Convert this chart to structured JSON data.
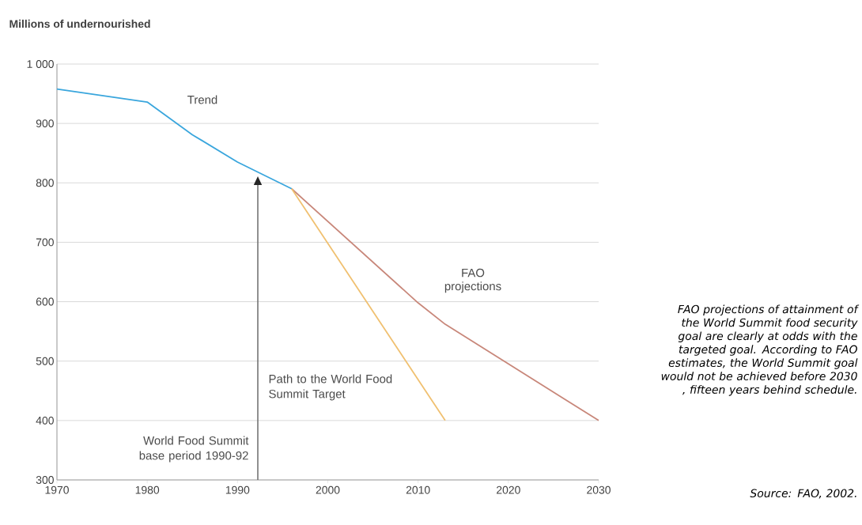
{
  "chart_data": {
    "type": "line",
    "ylabel": "Millions of undernourished",
    "xlim": [
      1970,
      2030
    ],
    "xticks": [
      1970,
      1980,
      1990,
      2000,
      2010,
      2020,
      2030
    ],
    "ylim": [
      300,
      1000
    ],
    "yticks": [
      300,
      400,
      500,
      600,
      700,
      800,
      900,
      {
        "value": 1000,
        "label": "1 000"
      }
    ],
    "grid": "y",
    "marker": "none",
    "line_style": "solid",
    "series": [
      {
        "color": "#3aa6dd",
        "x": [
          1970,
          1980,
          1985,
          1990,
          1996
        ],
        "values": [
          958,
          936,
          881,
          835,
          790
        ]
      },
      {
        "color": "#c8877a",
        "x": [
          1996,
          2010,
          2013,
          2030
        ],
        "values": [
          790,
          598,
          562,
          400
        ]
      },
      {
        "color": "#f0c070",
        "x": [
          1996,
          2013
        ],
        "values": [
          790,
          400
        ]
      }
    ],
    "annotations": [
      "Trend",
      "FAO projections",
      "Path to the World Food Summit Target",
      "World Food Summit base period 1990-92",
      "FAO projections of attainment of the World Summit food security goal are clearly at odds with the targeted goal. According to FAO estimates, the World Summit goal would not be achieved before 2030 , fifteen years behind schedule.",
      "Source: FAO, 2002."
    ]
  }
}
